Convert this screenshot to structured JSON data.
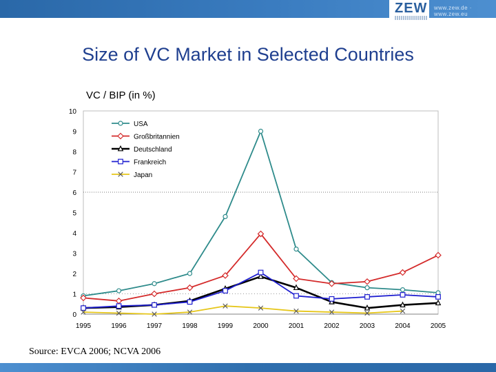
{
  "header": {
    "logo": "ZEW",
    "url": "www.zew.de · www.zew.eu"
  },
  "title": "Size of VC Market in Selected Countries",
  "subtitle": "VC / BIP (in %)",
  "source": "Source: EVCA 2006; NCVA 2006",
  "colors": {
    "banner": "#2f6fae",
    "title": "#1f3f8f",
    "usa": "#2e8b8b",
    "gb": "#d42a2a",
    "de": "#000000",
    "fr": "#1f1fd0",
    "jp": "#e6c619"
  },
  "chart_data": {
    "type": "line",
    "title": "",
    "xlabel": "",
    "ylabel": "VC / BIP (in %)",
    "x": [
      "1995",
      "1996",
      "1997",
      "1998",
      "1999",
      "2000",
      "2001",
      "2002",
      "2003",
      "2004",
      "2005"
    ],
    "ylim": [
      0,
      10
    ],
    "yticks": [
      "0",
      "1",
      "2",
      "3",
      "4",
      "5",
      "6",
      "7",
      "8",
      "9",
      "10"
    ],
    "reference_line": 6,
    "grid": false,
    "legend_position": "top-left",
    "series": [
      {
        "name": "USA",
        "marker": "circle",
        "color": "#2e8b8b",
        "values": [
          0.9,
          1.15,
          1.5,
          2.0,
          4.8,
          9.0,
          3.2,
          1.55,
          1.3,
          1.2,
          1.05
        ]
      },
      {
        "name": "Großbritannien",
        "marker": "diamond",
        "color": "#d42a2a",
        "values": [
          0.8,
          0.65,
          1.0,
          1.3,
          1.9,
          3.95,
          1.75,
          1.5,
          1.6,
          2.05,
          2.9
        ]
      },
      {
        "name": "Deutschland",
        "marker": "triangle",
        "color": "#000000",
        "values": [
          0.3,
          0.35,
          0.45,
          0.65,
          1.25,
          1.85,
          1.3,
          0.6,
          0.3,
          0.45,
          0.55
        ]
      },
      {
        "name": "Frankreich",
        "marker": "square",
        "color": "#1f1fd0",
        "values": [
          0.3,
          0.4,
          0.45,
          0.6,
          1.15,
          2.05,
          0.9,
          0.75,
          0.85,
          0.95,
          0.85
        ]
      },
      {
        "name": "Japan",
        "marker": "x",
        "color": "#e6c619",
        "values": [
          0.1,
          0.05,
          0.0,
          0.1,
          0.4,
          0.3,
          0.15,
          0.1,
          0.05,
          0.15,
          null
        ]
      }
    ]
  }
}
